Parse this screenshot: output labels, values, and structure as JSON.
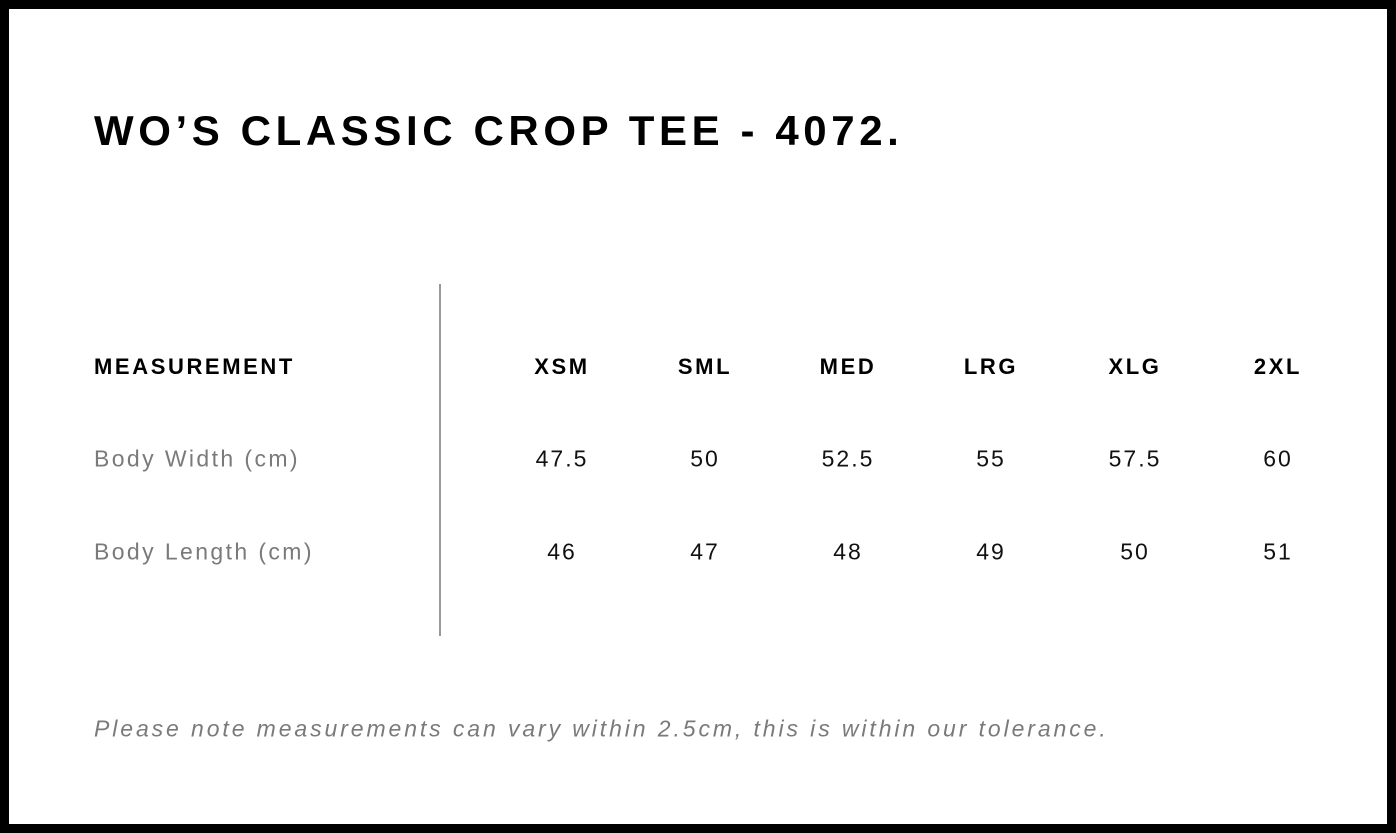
{
  "title": "WO’S CLASSIC CROP TEE - 4072.",
  "table": {
    "header_label": "MEASUREMENT",
    "sizes": [
      "XSM",
      "SML",
      "MED",
      "LRG",
      "XLG",
      "2XL"
    ],
    "rows": [
      {
        "label": "Body Width (cm)",
        "values": [
          "47.5",
          "50",
          "52.5",
          "55",
          "57.5",
          "60"
        ]
      },
      {
        "label": "Body Length (cm)",
        "values": [
          "46",
          "47",
          "48",
          "49",
          "50",
          "51"
        ]
      }
    ]
  },
  "note": "Please note measurements can vary within 2.5cm, this is within our tolerance."
}
